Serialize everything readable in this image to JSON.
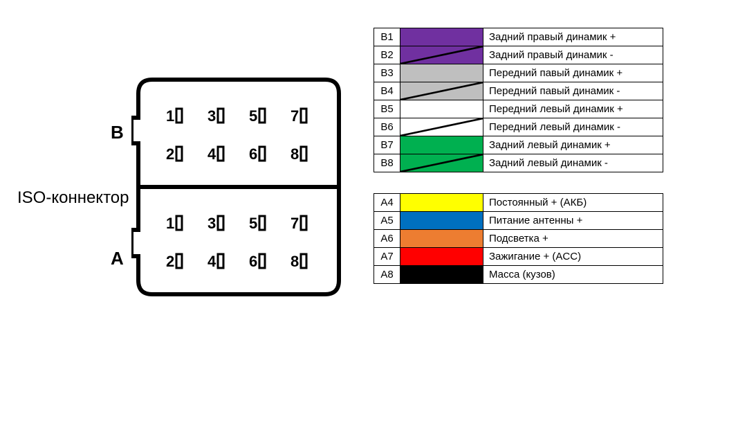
{
  "connector": {
    "title": "ISO-коннектор",
    "section_b_label": "B",
    "section_a_label": "A",
    "pins_row1": [
      "1",
      "3",
      "5",
      "7"
    ],
    "pins_row2": [
      "2",
      "4",
      "6",
      "8"
    ],
    "outline_color": "#000000",
    "outline_width": 6
  },
  "legend_b": {
    "rows": [
      {
        "pin": "B1",
        "color": "#7030a0",
        "stripe": false,
        "desc": "Задний правый динамик +"
      },
      {
        "pin": "B2",
        "color": "#7030a0",
        "stripe": true,
        "desc": "Задний правый динамик -"
      },
      {
        "pin": "B3",
        "color": "#bfbfbf",
        "stripe": false,
        "desc": "Передний павый динамик +"
      },
      {
        "pin": "B4",
        "color": "#bfbfbf",
        "stripe": true,
        "desc": "Передний павый динамик -"
      },
      {
        "pin": "B5",
        "color": "#ffffff",
        "stripe": false,
        "desc": "Передний левый динамик +"
      },
      {
        "pin": "B6",
        "color": "#ffffff",
        "stripe": true,
        "desc": "Передний левый динамик -"
      },
      {
        "pin": "B7",
        "color": "#00b050",
        "stripe": false,
        "desc": "Задний левый динамик +"
      },
      {
        "pin": "B8",
        "color": "#00b050",
        "stripe": true,
        "desc": "Задний левый динамик -"
      }
    ]
  },
  "legend_a": {
    "rows": [
      {
        "pin": "A4",
        "color": "#ffff00",
        "stripe": false,
        "desc": "Постоянный + (АКБ)"
      },
      {
        "pin": "A5",
        "color": "#0070c0",
        "stripe": false,
        "desc": "Питание антенны +"
      },
      {
        "pin": "A6",
        "color": "#ed7d31",
        "stripe": false,
        "desc": "Подсветка +"
      },
      {
        "pin": "A7",
        "color": "#ff0000",
        "stripe": false,
        "desc": "Зажигание + (ACC)"
      },
      {
        "pin": "A8",
        "color": "#000000",
        "stripe": false,
        "desc": "Масса (кузов)"
      }
    ]
  },
  "stripe_color": "#000000"
}
